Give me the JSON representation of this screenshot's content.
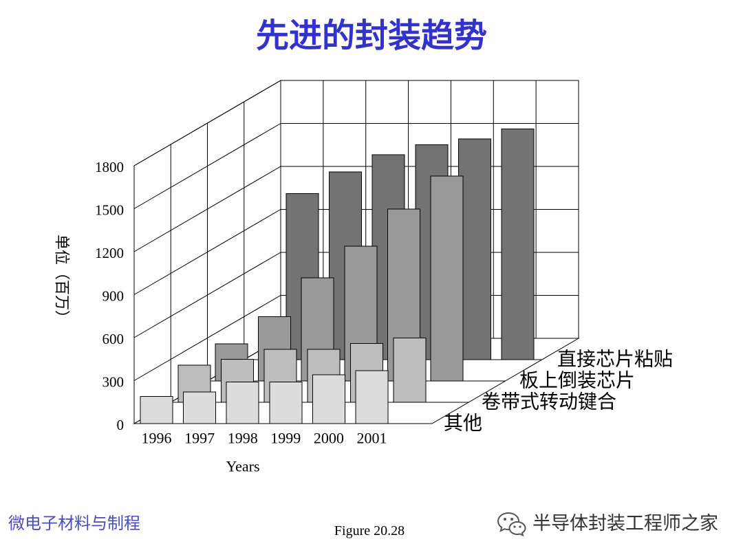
{
  "slide": {
    "footer_left": "微电子材料与制程",
    "caption": "Figure 20.28",
    "watermark": "半导体封装工程师之家",
    "watermark_icon": "wechat-icon"
  },
  "colors": {
    "title": "#3333cc",
    "footer_left": "#4b4bc6"
  },
  "chart_data": {
    "type": "bar",
    "three_d": true,
    "title": "先进的封装趋势",
    "xlabel": "Years",
    "ylabel": "单位（百万）",
    "categories": [
      "1996",
      "1997",
      "1998",
      "1999",
      "2000",
      "2001"
    ],
    "yticks": [
      0,
      300,
      600,
      900,
      1200,
      1500,
      1800
    ],
    "ylim": [
      0,
      1800
    ],
    "grid": true,
    "legend": "none",
    "series": [
      {
        "name": "直接芯片粘贴",
        "color": "#737373",
        "values": [
          1160,
          1310,
          1430,
          1500,
          1540,
          1610
        ]
      },
      {
        "name": "板上倒装芯片",
        "color": "#999999",
        "values": [
          260,
          450,
          720,
          940,
          1200,
          1430
        ]
      },
      {
        "name": "卷带式转动键合",
        "color": "#bdbdbd",
        "values": [
          260,
          300,
          370,
          370,
          410,
          450
        ]
      },
      {
        "name": "其他",
        "color": "#dcdcdc",
        "values": [
          190,
          220,
          290,
          290,
          340,
          370
        ]
      }
    ]
  }
}
